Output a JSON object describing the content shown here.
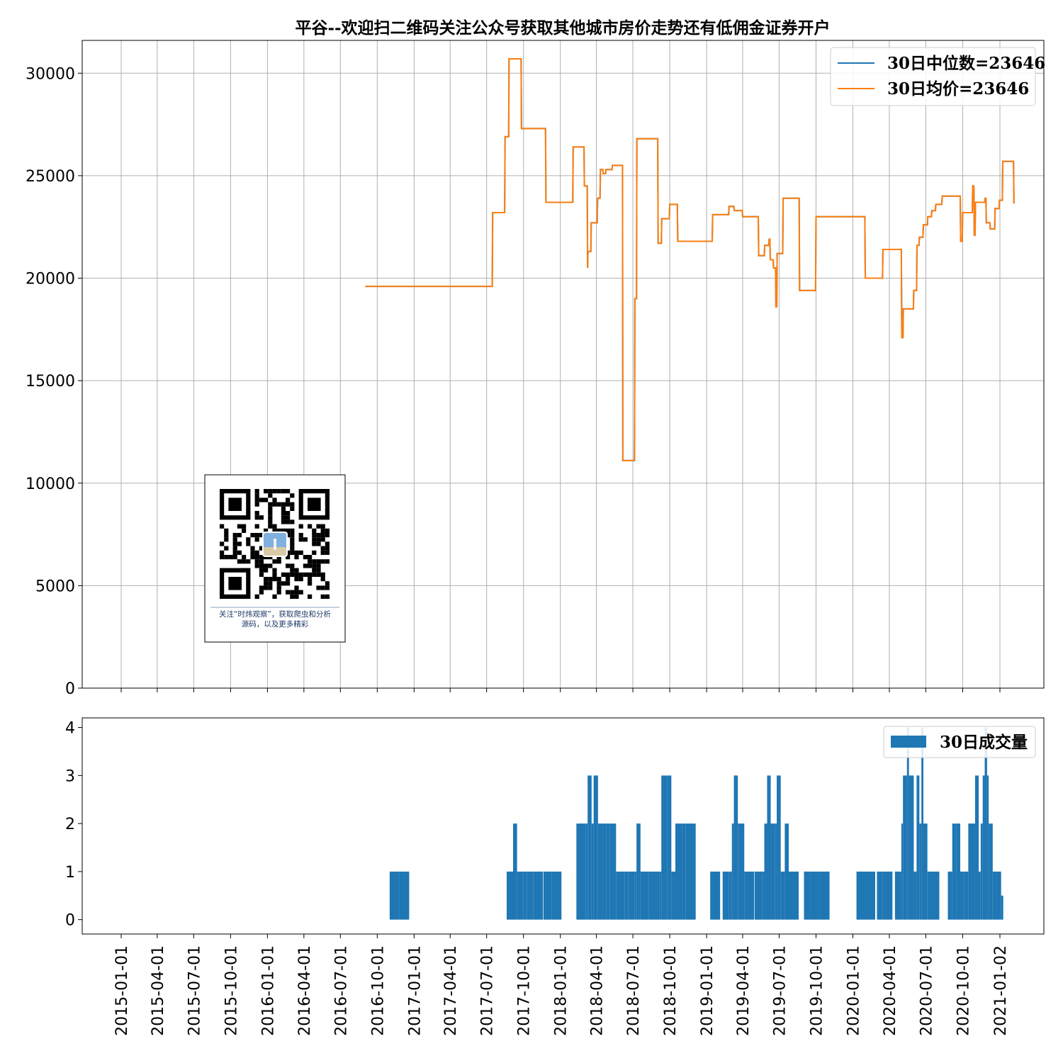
{
  "chart_data": [
    {
      "type": "line",
      "title": "平谷--欢迎扫二维码关注公众号获取其他城市房价走势还有低佣金证券开户",
      "x_axis": "date",
      "ylim": [
        0,
        31600
      ],
      "yticks": [
        0,
        5000,
        10000,
        15000,
        20000,
        25000,
        30000
      ],
      "grid": true,
      "legend_position": "top-right",
      "series": [
        {
          "name": "30日中位数=23646",
          "color": "#1f77b4",
          "points": [
            [
              "2016-09-01",
              19600
            ],
            [
              "2016-10-15",
              19600
            ],
            [
              "2017-01-01",
              19600
            ],
            [
              "2017-06-01",
              19600
            ],
            [
              "2017-07-15",
              19600
            ],
            [
              "2017-07-16",
              23200
            ],
            [
              "2017-08-15",
              23200
            ],
            [
              "2017-08-16",
              26900
            ],
            [
              "2017-08-25",
              26900
            ],
            [
              "2017-08-26",
              30700
            ],
            [
              "2017-09-25",
              30700
            ],
            [
              "2017-09-26",
              27300
            ],
            [
              "2017-11-25",
              27300
            ],
            [
              "2017-11-26",
              23700
            ],
            [
              "2018-02-01",
              23700
            ],
            [
              "2018-02-02",
              26400
            ],
            [
              "2018-03-01",
              26400
            ],
            [
              "2018-03-02",
              24500
            ],
            [
              "2018-03-09",
              24500
            ],
            [
              "2018-03-10",
              20500
            ],
            [
              "2018-03-11",
              21300
            ],
            [
              "2018-03-18",
              21300
            ],
            [
              "2018-03-19",
              22700
            ],
            [
              "2018-04-03",
              22700
            ],
            [
              "2018-04-04",
              23900
            ],
            [
              "2018-04-10",
              23900
            ],
            [
              "2018-04-11",
              25300
            ],
            [
              "2018-04-17",
              25300
            ],
            [
              "2018-04-18",
              25100
            ],
            [
              "2018-04-24",
              25100
            ],
            [
              "2018-04-25",
              25300
            ],
            [
              "2018-05-10",
              25300
            ],
            [
              "2018-05-11",
              25500
            ],
            [
              "2018-06-05",
              25500
            ],
            [
              "2018-06-06",
              11100
            ],
            [
              "2018-07-05",
              11100
            ],
            [
              "2018-07-06",
              19000
            ],
            [
              "2018-07-10",
              19000
            ],
            [
              "2018-07-11",
              26800
            ],
            [
              "2018-09-01",
              26800
            ],
            [
              "2018-09-02",
              21700
            ],
            [
              "2018-09-10",
              21700
            ],
            [
              "2018-09-11",
              22900
            ],
            [
              "2018-09-30",
              22900
            ],
            [
              "2018-10-01",
              23600
            ],
            [
              "2018-10-20",
              23600
            ],
            [
              "2018-10-21",
              21800
            ],
            [
              "2019-01-15",
              21800
            ],
            [
              "2019-01-16",
              23100
            ],
            [
              "2019-02-25",
              23100
            ],
            [
              "2019-02-26",
              23500
            ],
            [
              "2019-03-10",
              23500
            ],
            [
              "2019-03-11",
              23300
            ],
            [
              "2019-03-31",
              23300
            ],
            [
              "2019-04-01",
              23000
            ],
            [
              "2019-05-10",
              23000
            ],
            [
              "2019-05-11",
              21100
            ],
            [
              "2019-05-25",
              21100
            ],
            [
              "2019-05-26",
              21600
            ],
            [
              "2019-06-05",
              21600
            ],
            [
              "2019-06-06",
              21900
            ],
            [
              "2019-06-08",
              21900
            ],
            [
              "2019-06-09",
              20900
            ],
            [
              "2019-06-16",
              20900
            ],
            [
              "2019-06-17",
              20500
            ],
            [
              "2019-06-22",
              20500
            ],
            [
              "2019-06-23",
              18600
            ],
            [
              "2019-06-25",
              18600
            ],
            [
              "2019-06-26",
              21200
            ],
            [
              "2019-07-10",
              21200
            ],
            [
              "2019-07-11",
              23900
            ],
            [
              "2019-08-20",
              23900
            ],
            [
              "2019-08-21",
              19400
            ],
            [
              "2019-09-30",
              19400
            ],
            [
              "2019-10-01",
              23000
            ],
            [
              "2020-01-31",
              23000
            ],
            [
              "2020-02-01",
              20000
            ],
            [
              "2020-03-15",
              20000
            ],
            [
              "2020-03-16",
              21400
            ],
            [
              "2020-05-01",
              21400
            ],
            [
              "2020-05-02",
              17100
            ],
            [
              "2020-05-05",
              17100
            ],
            [
              "2020-05-06",
              18500
            ],
            [
              "2020-05-31",
              18500
            ],
            [
              "2020-06-01",
              19400
            ],
            [
              "2020-06-08",
              19400
            ],
            [
              "2020-06-09",
              21600
            ],
            [
              "2020-06-14",
              21600
            ],
            [
              "2020-06-15",
              22000
            ],
            [
              "2020-06-24",
              22000
            ],
            [
              "2020-06-25",
              22600
            ],
            [
              "2020-07-05",
              22600
            ],
            [
              "2020-07-06",
              23000
            ],
            [
              "2020-07-15",
              23000
            ],
            [
              "2020-07-16",
              23300
            ],
            [
              "2020-07-25",
              23300
            ],
            [
              "2020-07-26",
              23600
            ],
            [
              "2020-08-10",
              23600
            ],
            [
              "2020-08-11",
              24000
            ],
            [
              "2020-09-25",
              24000
            ],
            [
              "2020-09-26",
              21800
            ],
            [
              "2020-09-30",
              21800
            ],
            [
              "2020-10-01",
              23200
            ],
            [
              "2020-10-25",
              23200
            ],
            [
              "2020-10-26",
              24500
            ],
            [
              "2020-10-29",
              24500
            ],
            [
              "2020-10-30",
              22100
            ],
            [
              "2020-11-01",
              22100
            ],
            [
              "2020-11-02",
              23700
            ],
            [
              "2020-11-25",
              23700
            ],
            [
              "2020-11-26",
              23900
            ],
            [
              "2020-11-28",
              23900
            ],
            [
              "2020-11-29",
              22700
            ],
            [
              "2020-12-08",
              22700
            ],
            [
              "2020-12-09",
              22400
            ],
            [
              "2020-12-20",
              22400
            ],
            [
              "2020-12-21",
              23400
            ],
            [
              "2020-12-31",
              23400
            ],
            [
              "2021-01-01",
              23800
            ],
            [
              "2021-01-08",
              23800
            ],
            [
              "2021-01-09",
              25700
            ],
            [
              "2021-02-05",
              25700
            ],
            [
              "2021-02-06",
              23646
            ]
          ]
        },
        {
          "name": "30日均价=23646",
          "color": "#ff7f0e",
          "same_as_series": 0
        }
      ]
    },
    {
      "type": "bar",
      "legend": [
        "30日成交量"
      ],
      "legend_position": "top-right",
      "color": "#1f77b4",
      "ylim": [
        -0.3,
        4.2
      ],
      "yticks": [
        0,
        1,
        2,
        3,
        4
      ],
      "xticks": [
        "2015-01-01",
        "2015-04-01",
        "2015-07-01",
        "2015-10-01",
        "2016-01-01",
        "2016-04-01",
        "2016-07-01",
        "2016-10-01",
        "2017-01-01",
        "2017-04-01",
        "2017-07-01",
        "2017-10-01",
        "2018-01-01",
        "2018-04-01",
        "2018-07-01",
        "2018-10-01",
        "2019-01-01",
        "2019-04-01",
        "2019-07-01",
        "2019-10-01",
        "2020-01-01",
        "2020-04-01",
        "2020-07-01",
        "2020-10-01",
        "2021-01-02"
      ],
      "volume": [
        [
          "2016-11-01",
          1
        ],
        [
          "2016-11-25",
          1
        ],
        [
          "2017-08-20",
          1
        ],
        [
          "2017-09-05",
          2
        ],
        [
          "2017-09-15",
          1
        ],
        [
          "2017-10-01",
          1
        ],
        [
          "2017-10-10",
          1
        ],
        [
          "2017-10-25",
          1
        ],
        [
          "2017-11-20",
          1
        ],
        [
          "2017-12-10",
          1
        ],
        [
          "2018-02-10",
          2
        ],
        [
          "2018-03-05",
          2
        ],
        [
          "2018-03-10",
          3
        ],
        [
          "2018-03-20",
          2
        ],
        [
          "2018-03-25",
          3
        ],
        [
          "2018-04-05",
          2
        ],
        [
          "2018-04-15",
          2
        ],
        [
          "2018-04-25",
          2
        ],
        [
          "2018-05-05",
          2
        ],
        [
          "2018-05-20",
          1
        ],
        [
          "2018-06-10",
          1
        ],
        [
          "2018-06-20",
          1
        ],
        [
          "2018-07-05",
          1
        ],
        [
          "2018-07-10",
          2
        ],
        [
          "2018-07-20",
          1
        ],
        [
          "2018-08-10",
          1
        ],
        [
          "2018-08-30",
          1
        ],
        [
          "2018-09-05",
          1
        ],
        [
          "2018-09-10",
          3
        ],
        [
          "2018-09-25",
          3
        ],
        [
          "2018-10-05",
          1
        ],
        [
          "2018-10-15",
          2
        ],
        [
          "2018-11-01",
          2
        ],
        [
          "2018-11-10",
          2
        ],
        [
          "2019-01-10",
          1
        ],
        [
          "2019-02-10",
          1
        ],
        [
          "2019-02-25",
          1
        ],
        [
          "2019-03-05",
          2
        ],
        [
          "2019-03-10",
          3
        ],
        [
          "2019-03-20",
          2
        ],
        [
          "2019-04-05",
          1
        ],
        [
          "2019-05-01",
          1
        ],
        [
          "2019-05-20",
          1
        ],
        [
          "2019-05-25",
          2
        ],
        [
          "2019-06-01",
          3
        ],
        [
          "2019-06-10",
          2
        ],
        [
          "2019-06-20",
          2
        ],
        [
          "2019-06-25",
          3
        ],
        [
          "2019-07-05",
          1
        ],
        [
          "2019-07-15",
          2
        ],
        [
          "2019-07-25",
          1
        ],
        [
          "2019-09-01",
          1
        ],
        [
          "2019-09-15",
          1
        ],
        [
          "2019-10-01",
          1
        ],
        [
          "2019-10-10",
          1
        ],
        [
          "2020-01-10",
          1
        ],
        [
          "2020-02-01",
          1
        ],
        [
          "2020-03-01",
          1
        ],
        [
          "2020-03-15",
          1
        ],
        [
          "2020-04-15",
          1
        ],
        [
          "2020-05-01",
          2
        ],
        [
          "2020-05-05",
          3
        ],
        [
          "2020-05-15",
          4
        ],
        [
          "2020-05-20",
          3
        ],
        [
          "2020-06-01",
          1
        ],
        [
          "2020-06-08",
          3
        ],
        [
          "2020-06-15",
          2
        ],
        [
          "2020-06-20",
          4
        ],
        [
          "2020-06-25",
          2
        ],
        [
          "2020-07-05",
          1
        ],
        [
          "2020-07-10",
          1
        ],
        [
          "2020-08-25",
          1
        ],
        [
          "2020-09-05",
          2
        ],
        [
          "2020-09-15",
          2
        ],
        [
          "2020-09-25",
          1
        ],
        [
          "2020-10-05",
          1
        ],
        [
          "2020-10-15",
          2
        ],
        [
          "2020-10-25",
          2
        ],
        [
          "2020-11-01",
          3
        ],
        [
          "2020-11-10",
          1
        ],
        [
          "2020-11-15",
          2
        ],
        [
          "2020-11-20",
          3
        ],
        [
          "2020-11-25",
          4
        ],
        [
          "2020-12-01",
          3
        ],
        [
          "2020-12-05",
          2
        ],
        [
          "2020-12-15",
          1
        ],
        [
          "2020-12-25",
          1
        ],
        [
          "2021-01-05",
          0.5
        ]
      ]
    }
  ],
  "qr_card": {
    "caption_line1": "关注“时炜观察”，获取爬虫和分析",
    "caption_line2": "源码，以及更多精彩"
  }
}
